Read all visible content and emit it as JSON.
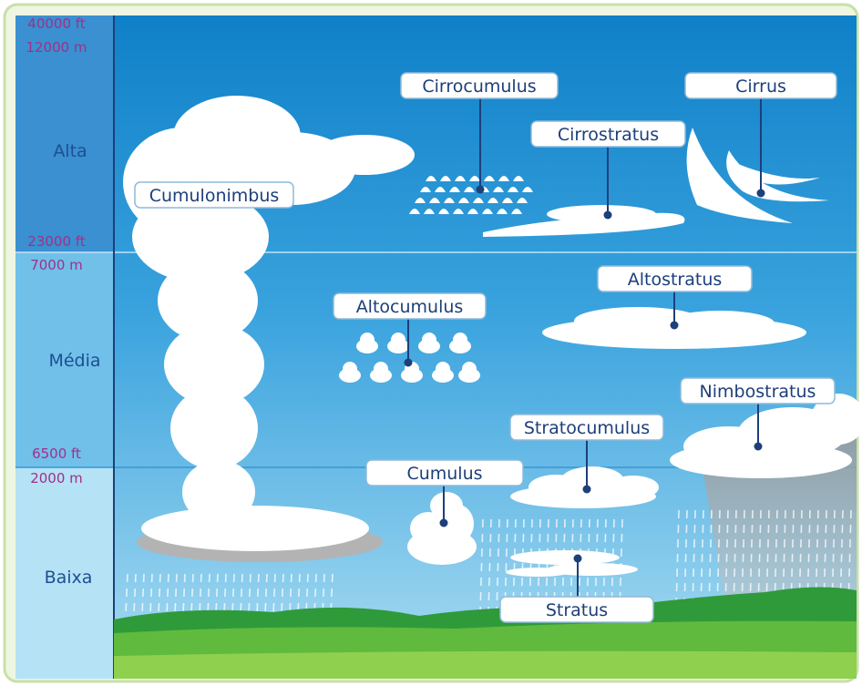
{
  "altitudes": [
    {
      "ft": "40000 ft",
      "m": "12000 m"
    },
    {
      "ft": "23000 ft",
      "m": "7000 m"
    },
    {
      "ft": "6500 ft",
      "m": "2000 m"
    }
  ],
  "layers": [
    "Alta",
    "Média",
    "Baixa"
  ],
  "clouds": [
    "Cirrocumulus",
    "Cirrus",
    "Cirrostratus",
    "Cumulonimbus",
    "Altostratus",
    "Altocumulus",
    "Nimbostratus",
    "Stratocumulus",
    "Cumulus",
    "Stratus"
  ]
}
